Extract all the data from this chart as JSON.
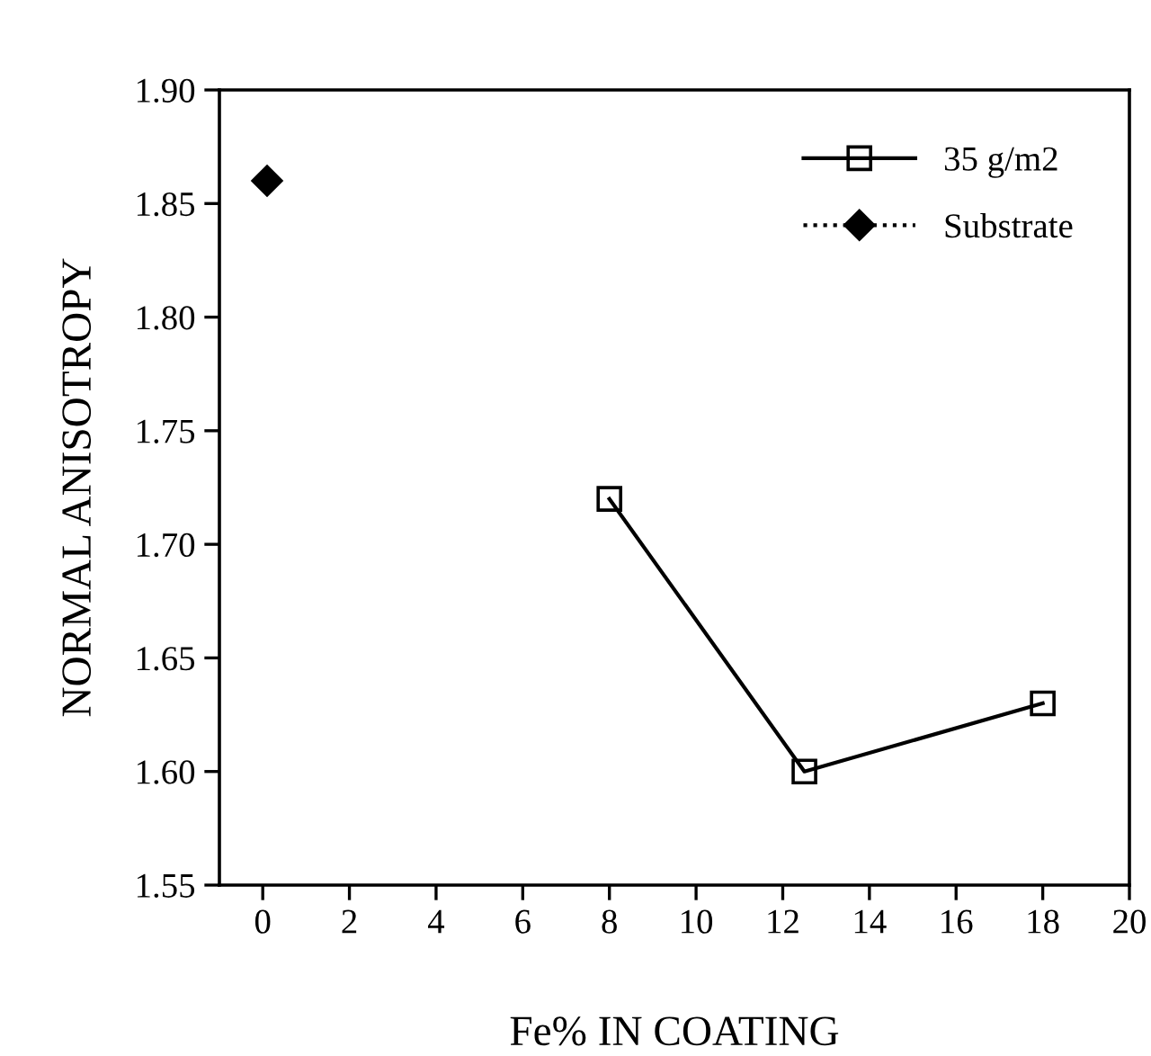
{
  "chart_data": {
    "type": "line",
    "xlabel": "Fe% IN COATING",
    "ylabel": "NORMAL ANISOTROPY",
    "series": [
      {
        "name": "35 g/m2",
        "color": "#000000",
        "x": [
          8,
          12.5,
          18
        ],
        "values": [
          1.72,
          1.6,
          1.63
        ],
        "marker": "square",
        "line_style": "solid"
      },
      {
        "name": "Substrate",
        "color": "#000000",
        "x": [
          0.1
        ],
        "values": [
          1.86
        ],
        "marker": "diamond",
        "line_style": "dotted"
      }
    ],
    "xlim": [
      -1,
      20
    ],
    "xticks": [
      0,
      2,
      4,
      6,
      8,
      10,
      12,
      14,
      16,
      18,
      20
    ],
    "ylim": [
      1.55,
      1.9
    ],
    "yticks": [
      {
        "value": 1.55,
        "label": "1.55"
      },
      {
        "value": 1.6,
        "label": "1.60"
      },
      {
        "value": 1.65,
        "label": "1.65"
      },
      {
        "value": 1.7,
        "label": "1.70"
      },
      {
        "value": 1.75,
        "label": "1.75"
      },
      {
        "value": 1.8,
        "label": "1.80"
      },
      {
        "value": 1.85,
        "label": "1.85"
      },
      {
        "value": 1.9,
        "label": "1.90"
      }
    ],
    "grid": false,
    "legend": "top right"
  }
}
